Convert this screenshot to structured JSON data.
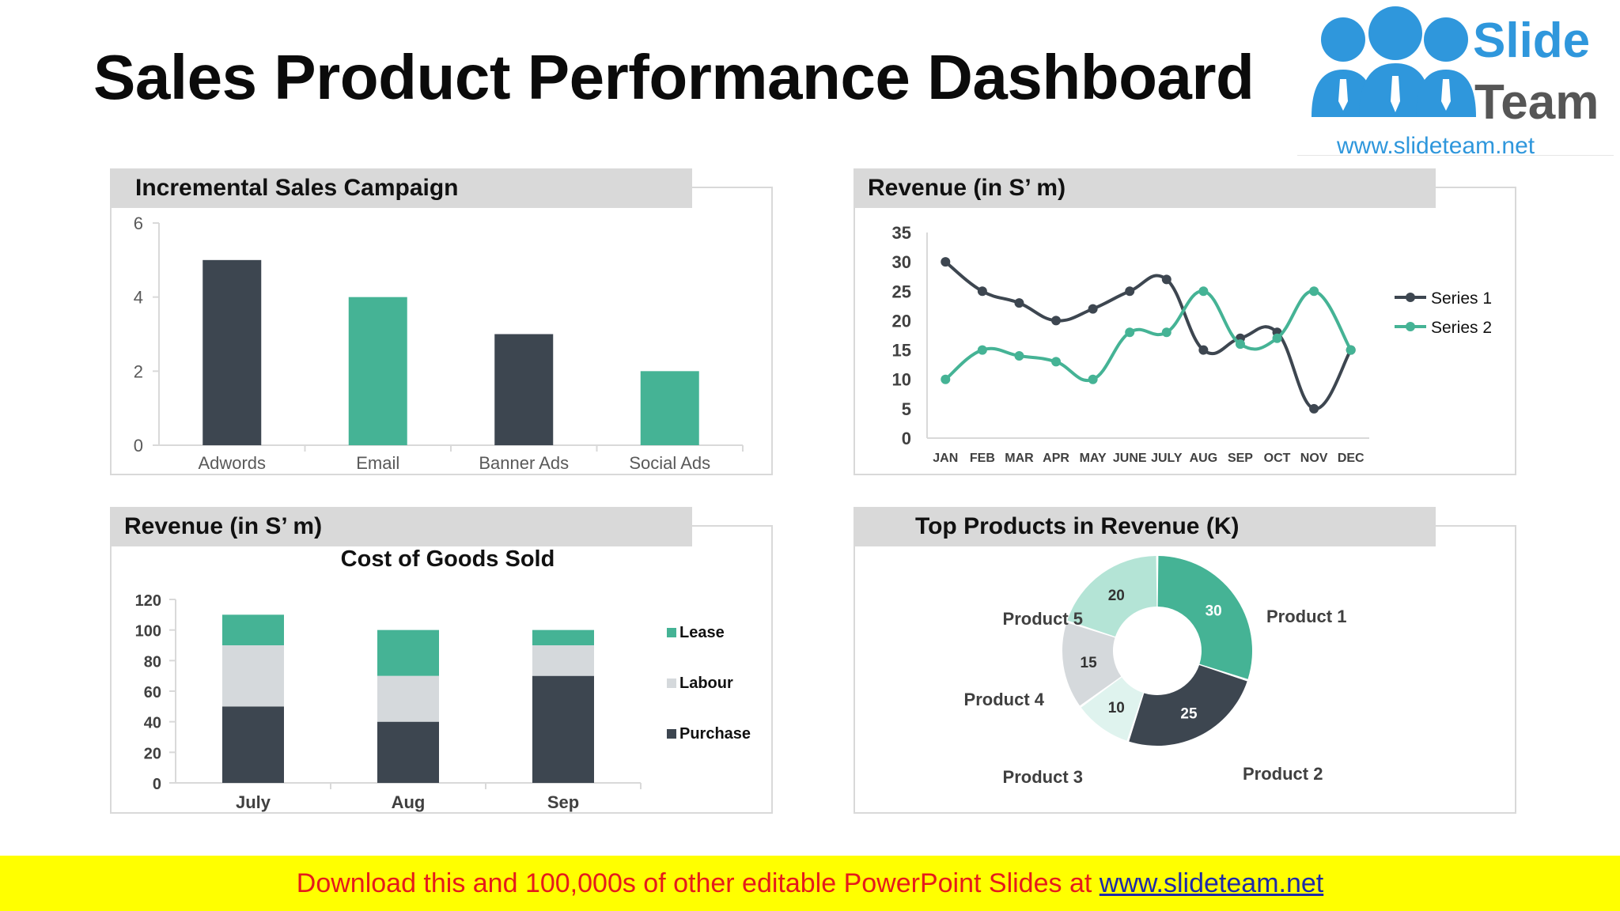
{
  "page": {
    "title": "Sales Product Performance Dashboard",
    "logo": {
      "word1": "Slide",
      "word2": "Team",
      "url": "www.slideteam.net"
    },
    "banner": {
      "text": "Download this and 100,000s of other editable PowerPoint Slides at ",
      "url": "www.slideteam.net"
    }
  },
  "colors": {
    "dark": "#3d4650",
    "teal": "#45b395",
    "light_gray": "#d5d9dc",
    "light_teal": "#b4e4d6",
    "lighter_teal": "#dff3ee",
    "header_bg": "#d9d9d9",
    "logo_blue": "#2f97dc",
    "logo_gray": "#565656"
  },
  "panels": [
    {
      "header": "Incremental Sales Campaign"
    },
    {
      "header": "Revenue (in S’ m)"
    },
    {
      "header": "Revenue (in S’ m)"
    },
    {
      "header": "Top Products in Revenue (K)"
    }
  ],
  "chart_data": [
    {
      "type": "bar",
      "title": "",
      "categories": [
        "Adwords",
        "Email",
        "Banner Ads",
        "Social Ads"
      ],
      "values": [
        5,
        4,
        3,
        2
      ],
      "colors": [
        "#3d4650",
        "#45b395",
        "#3d4650",
        "#45b395"
      ],
      "ylim": [
        0,
        6
      ],
      "yticks": [
        0,
        2,
        4,
        6
      ],
      "grid": false
    },
    {
      "type": "line",
      "title": "",
      "categories": [
        "JAN",
        "FEB",
        "MAR",
        "APR",
        "MAY",
        "JUNE",
        "JULY",
        "AUG",
        "SEP",
        "OCT",
        "NOV",
        "DEC"
      ],
      "series": [
        {
          "name": "Series 1",
          "color": "#3d4650",
          "values": [
            30,
            25,
            23,
            20,
            22,
            25,
            27,
            15,
            17,
            18,
            5,
            15
          ]
        },
        {
          "name": "Series 2",
          "color": "#45b395",
          "values": [
            10,
            15,
            14,
            13,
            10,
            18,
            18,
            25,
            16,
            17,
            25,
            15
          ]
        }
      ],
      "ylim": [
        0,
        35
      ],
      "yticks": [
        0,
        5,
        10,
        15,
        20,
        25,
        30,
        35
      ],
      "legend": "right",
      "smooth": true,
      "grid": false
    },
    {
      "type": "bar",
      "stacked": true,
      "title": "Cost of Goods Sold",
      "categories": [
        "July",
        "Aug",
        "Sep"
      ],
      "series": [
        {
          "name": "Purchase",
          "color": "#3d4650",
          "values": [
            50,
            40,
            70
          ]
        },
        {
          "name": "Labour",
          "color": "#d5d9dc",
          "values": [
            40,
            30,
            20
          ]
        },
        {
          "name": "Lease",
          "color": "#45b395",
          "values": [
            20,
            30,
            10
          ]
        }
      ],
      "ylim": [
        0,
        120
      ],
      "yticks": [
        0,
        20,
        40,
        60,
        80,
        100,
        120
      ],
      "legend": "right",
      "grid": false
    },
    {
      "type": "pie",
      "donut": true,
      "title": "",
      "slices": [
        {
          "label": "Product 1",
          "value": 30,
          "color": "#45b395"
        },
        {
          "label": "Product 2",
          "value": 25,
          "color": "#3d4650"
        },
        {
          "label": "Product 3",
          "value": 10,
          "color": "#dff3ee"
        },
        {
          "label": "Product 4",
          "value": 15,
          "color": "#d5d9dc"
        },
        {
          "label": "Product 5",
          "value": 20,
          "color": "#b4e4d6"
        }
      ]
    }
  ]
}
